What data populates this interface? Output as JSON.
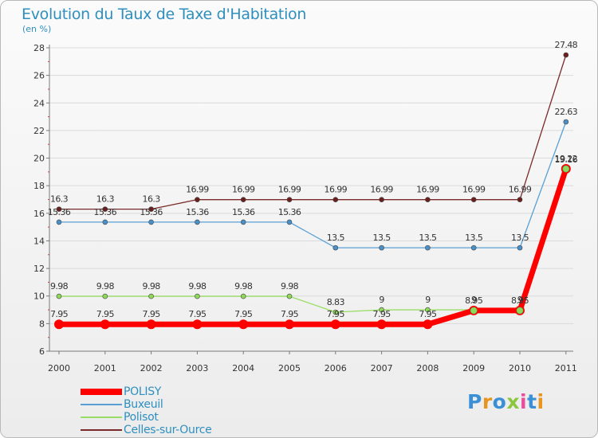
{
  "title": "Evolution du Taux de Taxe d'Habitation",
  "unit": "(en %)",
  "logo": {
    "text": "Proxiti",
    "colors": [
      "#3b8fd6",
      "#e8951f",
      "#3b8fd6",
      "#8cc63f",
      "#e84e9c",
      "#3b8fd6",
      "#e8951f"
    ]
  },
  "chart_data": {
    "type": "line",
    "title": "Evolution du Taux de Taxe d'Habitation",
    "ylabel": "(en %)",
    "xlabel": "",
    "x": [
      "2000",
      "2001",
      "2002",
      "2003",
      "2004",
      "2005",
      "2006",
      "2007",
      "2008",
      "2009",
      "2010",
      "2011"
    ],
    "ylim": [
      6,
      28
    ],
    "yticks": [
      "6",
      "8",
      "10",
      "12",
      "14",
      "16",
      "18",
      "20",
      "22",
      "24",
      "26",
      "28"
    ],
    "grid": true,
    "legend": "bottom-left",
    "series": [
      {
        "name": "POLISY",
        "color": "#ff0000",
        "values": [
          7.95,
          7.95,
          7.95,
          7.95,
          7.95,
          7.95,
          7.95,
          7.95,
          7.95,
          8.95,
          8.95,
          19.22
        ],
        "labels": [
          "7.95",
          "7.95",
          "7.95",
          "7.95",
          "7.95",
          "7.95",
          "7.95",
          "7.95",
          "7.95",
          "8.95",
          "8.95",
          "19.22"
        ]
      },
      {
        "name": "Buxeuil",
        "color": "#5a9fd4",
        "values": [
          15.36,
          15.36,
          15.36,
          15.36,
          15.36,
          15.36,
          13.5,
          13.5,
          13.5,
          13.5,
          13.5,
          22.63
        ],
        "labels": [
          "15.36",
          "15.36",
          "15.36",
          "15.36",
          "15.36",
          "15.36",
          "13.5",
          "13.5",
          "13.5",
          "13.5",
          "13.5",
          "22.63"
        ]
      },
      {
        "name": "Polisot",
        "color": "#99dd66",
        "values": [
          9.98,
          9.98,
          9.98,
          9.98,
          9.98,
          9.98,
          8.83,
          9,
          9,
          9,
          9,
          19.16
        ],
        "labels": [
          "9.98",
          "9.98",
          "9.98",
          "9.98",
          "9.98",
          "9.98",
          "8.83",
          "9",
          "9",
          "9",
          "9",
          "19.16"
        ]
      },
      {
        "name": "Celles-sur-Ource",
        "color": "#7a2a2a",
        "values": [
          16.3,
          16.3,
          16.3,
          16.99,
          16.99,
          16.99,
          16.99,
          16.99,
          16.99,
          16.99,
          16.99,
          27.48
        ],
        "labels": [
          "16.3",
          "16.3",
          "16.3",
          "16.99",
          "16.99",
          "16.99",
          "16.99",
          "16.99",
          "16.99",
          "16.99",
          "16.99",
          "27.48"
        ]
      }
    ]
  }
}
